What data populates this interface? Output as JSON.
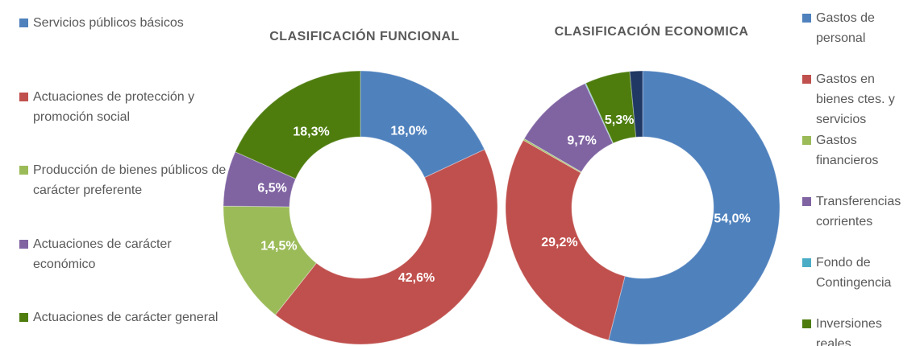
{
  "chart_data": [
    {
      "type": "donut",
      "title": "CLASIFICACIÓN FUNCIONAL",
      "legend": "left",
      "categories": [
        "Servicios públicos básicos",
        "Actuaciones de protección y promoción social",
        "Producción de bienes públicos de carácter preferente",
        "Actuaciones de carácter económico",
        "Actuaciones de carácter general"
      ],
      "values": [
        18.0,
        42.6,
        14.5,
        6.5,
        18.3
      ],
      "value_labels": [
        "18,0%",
        "42,6%",
        "14,5%",
        "6,5%",
        "18,3%"
      ],
      "colors": [
        "#4f81bd",
        "#c0504d",
        "#9bbb59",
        "#8064a2",
        "#4e7d0e"
      ]
    },
    {
      "type": "donut",
      "title": "CLASIFICACIÓN ECONOMICA",
      "legend": "right",
      "categories": [
        "Gastos de personal",
        "Gastos en bienes ctes. y servicios",
        "Gastos financieros",
        "Transferencias corrientes",
        "Fondo de Contingencia",
        "Inversiones reales",
        null
      ],
      "values": [
        54.0,
        29.2,
        0.2,
        9.7,
        0.1,
        5.3,
        1.5
      ],
      "value_labels": [
        "54,0%",
        "29,2%",
        null,
        "9,7%",
        null,
        "5,3%",
        null
      ],
      "colors": [
        "#4f81bd",
        "#c0504d",
        "#9bbb59",
        "#8064a2",
        "#4bacc6",
        "#4e7d0e",
        "#1f3864"
      ]
    }
  ]
}
